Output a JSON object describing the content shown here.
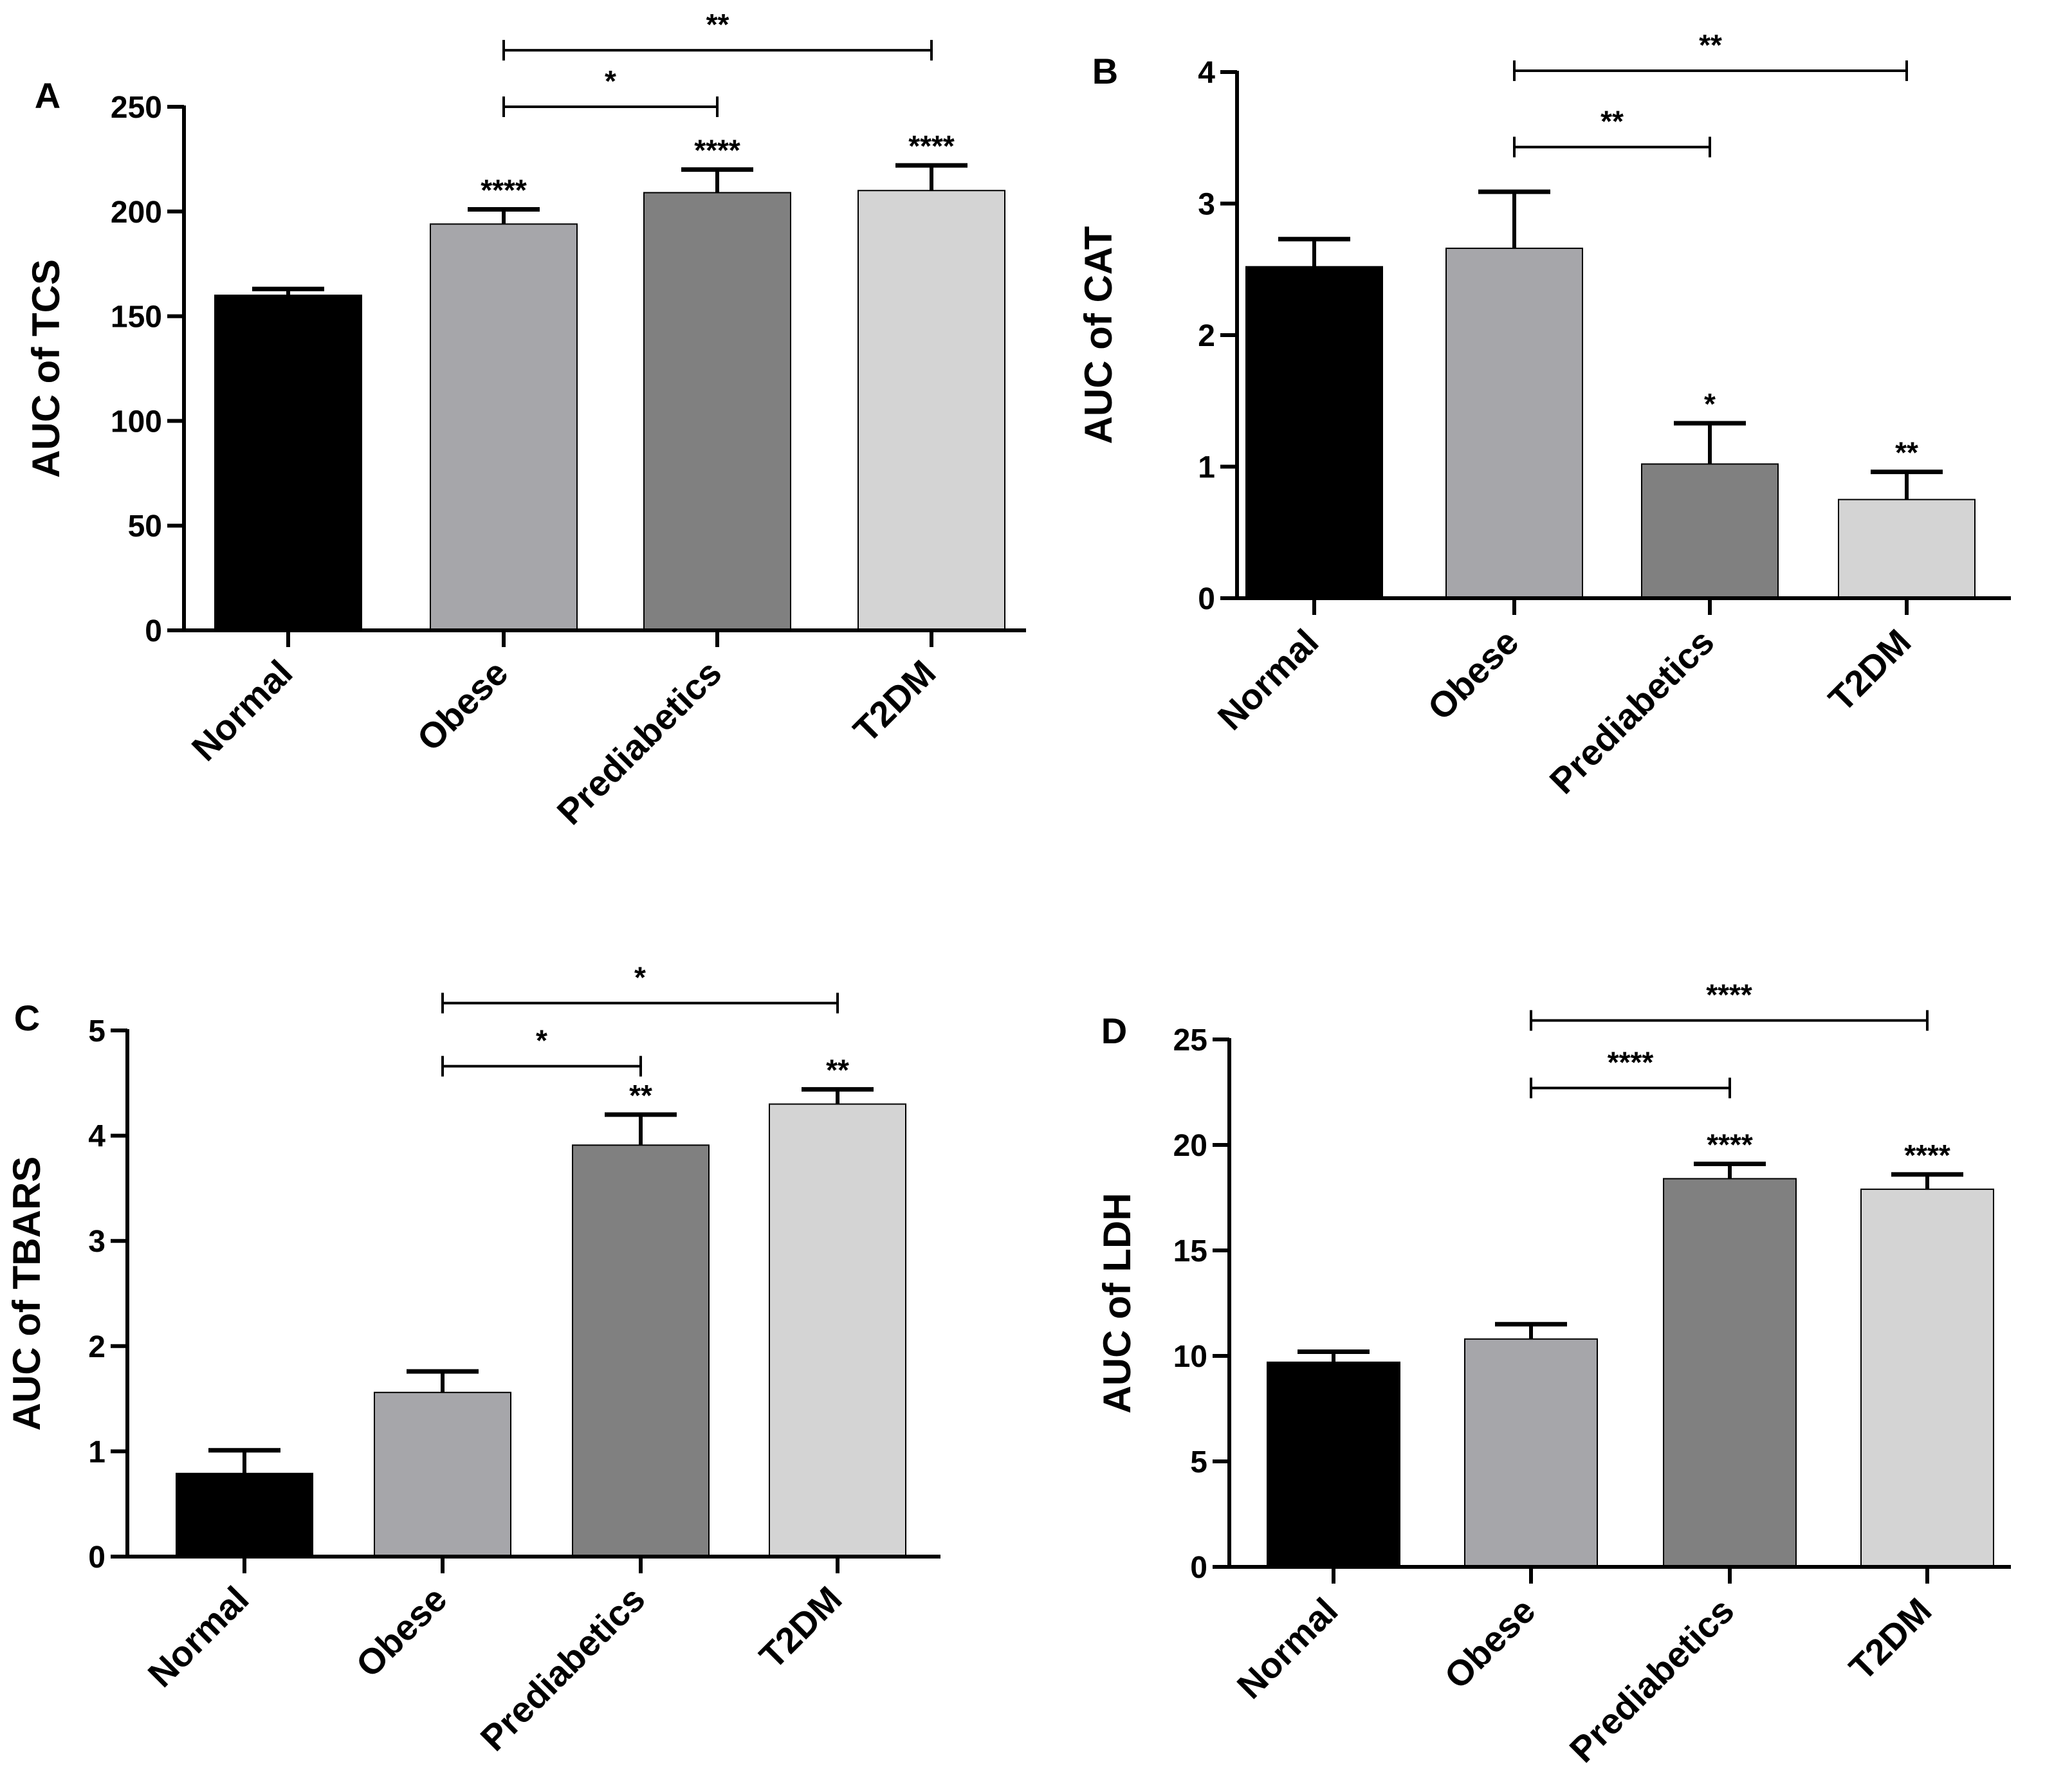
{
  "chart_data": [
    {
      "type": "bar",
      "panel": "A",
      "categories": [
        "Normal",
        "Obese",
        "Prediabetics",
        "T2DM"
      ],
      "values": [
        160,
        194,
        209,
        210
      ],
      "errors": [
        3,
        7,
        11,
        12
      ],
      "colors": [
        "#000000",
        "#a6a6aa",
        "#808080",
        "#d4d4d4"
      ],
      "ylabel": "AUC of TCS",
      "ylim": [
        0,
        250
      ],
      "yticks": [
        0,
        50,
        100,
        150,
        200,
        250
      ],
      "bar_marks": [
        "",
        "****",
        "****",
        "****"
      ],
      "comparisons": [
        {
          "from": 1,
          "to": 2,
          "label": "*",
          "value": 250
        },
        {
          "from": 1,
          "to": 3,
          "label": "**",
          "value": 277
        }
      ]
    },
    {
      "type": "bar",
      "panel": "B",
      "categories": [
        "Normal",
        "Obese",
        "Prediabetics",
        "T2DM"
      ],
      "values": [
        2.52,
        2.66,
        1.02,
        0.75
      ],
      "errors": [
        0.21,
        0.43,
        0.31,
        0.21
      ],
      "colors": [
        "#000000",
        "#a6a6aa",
        "#808080",
        "#d4d4d4"
      ],
      "ylabel": "AUC of CAT",
      "ylim": [
        0,
        4
      ],
      "yticks": [
        0,
        1,
        2,
        3,
        4
      ],
      "bar_marks": [
        "",
        "",
        "*",
        "**"
      ],
      "comparisons": [
        {
          "from": 1,
          "to": 2,
          "label": "**",
          "value": 3.43
        },
        {
          "from": 1,
          "to": 3,
          "label": "**",
          "value": 4.01
        }
      ]
    },
    {
      "type": "bar",
      "panel": "C",
      "categories": [
        "Normal",
        "Obese",
        "Prediabetics",
        "T2DM"
      ],
      "values": [
        0.79,
        1.56,
        3.91,
        4.3
      ],
      "errors": [
        0.22,
        0.2,
        0.29,
        0.14
      ],
      "colors": [
        "#000000",
        "#a6a6aa",
        "#808080",
        "#d4d4d4"
      ],
      "ylabel": "AUC of TBARS",
      "ylim": [
        0,
        5
      ],
      "yticks": [
        0,
        1,
        2,
        3,
        4,
        5
      ],
      "bar_marks": [
        "",
        "",
        "**",
        "**"
      ],
      "comparisons": [
        {
          "from": 1,
          "to": 2,
          "label": "*",
          "value": 4.66
        },
        {
          "from": 1,
          "to": 3,
          "label": "*",
          "value": 5.26
        }
      ]
    },
    {
      "type": "bar",
      "panel": "D",
      "categories": [
        "Normal",
        "Obese",
        "Prediabetics",
        "T2DM"
      ],
      "values": [
        9.7,
        10.8,
        18.4,
        17.9
      ],
      "errors": [
        0.5,
        0.7,
        0.7,
        0.7
      ],
      "colors": [
        "#000000",
        "#a6a6aa",
        "#808080",
        "#d4d4d4"
      ],
      "ylabel": "AUC of LDH",
      "ylim": [
        0,
        25
      ],
      "yticks": [
        0,
        5,
        10,
        15,
        20,
        25
      ],
      "bar_marks": [
        "",
        "",
        "****",
        "****"
      ],
      "comparisons": [
        {
          "from": 1,
          "to": 2,
          "label": "****",
          "value": 22.7
        },
        {
          "from": 1,
          "to": 3,
          "label": "****",
          "value": 25.9
        }
      ]
    }
  ]
}
